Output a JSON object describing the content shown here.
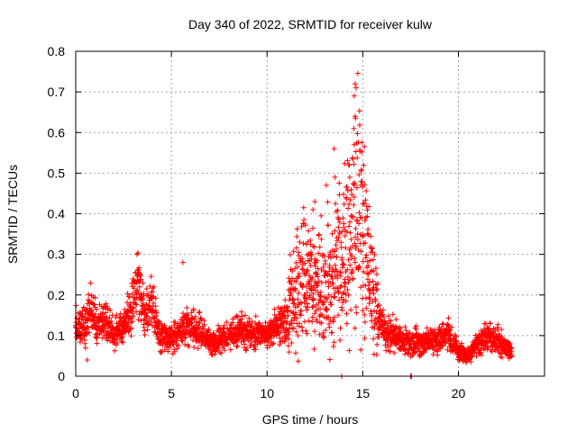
{
  "chart_data": {
    "type": "scatter",
    "title": "Day 340 of 2022, SRMTID for receiver kulw",
    "xlabel": "GPS time / hours",
    "ylabel": "SRMTID / TECUs",
    "xlim": [
      0,
      24.5
    ],
    "ylim": [
      0,
      0.8
    ],
    "xticks": [
      0,
      5,
      10,
      15,
      20
    ],
    "yticks": [
      0,
      0.1,
      0.2,
      0.3,
      0.4,
      0.5,
      0.6,
      0.7,
      0.8
    ],
    "xtick_labels": [
      "0",
      "5",
      "10",
      "15",
      "20"
    ],
    "ytick_labels": [
      "0",
      "0.1",
      "0.2",
      "0.3",
      "0.4",
      "0.5",
      "0.6",
      "0.7",
      "0.8"
    ],
    "grid": true,
    "marker": "+",
    "color": "#ff0000",
    "trend": {
      "x": [
        0,
        0.5,
        0.7,
        1.0,
        1.5,
        2.0,
        2.5,
        3.0,
        3.3,
        3.6,
        4.0,
        4.3,
        5.0,
        5.6,
        6.0,
        6.5,
        7.0,
        8.0,
        9.0,
        10.0,
        10.5,
        11.0,
        11.5,
        12.0,
        12.5,
        13.0,
        13.5,
        14.0,
        14.5,
        14.7,
        15.0,
        15.3,
        15.6,
        16.0,
        17.0,
        18.0,
        19.0,
        19.5,
        20.0,
        20.5,
        21.0,
        21.5,
        22.0,
        22.8
      ],
      "y": [
        0.12,
        0.13,
        0.17,
        0.13,
        0.14,
        0.1,
        0.12,
        0.18,
        0.24,
        0.14,
        0.18,
        0.1,
        0.09,
        0.12,
        0.13,
        0.11,
        0.08,
        0.1,
        0.11,
        0.1,
        0.12,
        0.14,
        0.2,
        0.24,
        0.22,
        0.21,
        0.24,
        0.28,
        0.36,
        0.45,
        0.36,
        0.26,
        0.18,
        0.12,
        0.09,
        0.08,
        0.09,
        0.1,
        0.06,
        0.05,
        0.08,
        0.1,
        0.09,
        0.06
      ]
    },
    "sample_step_hours": 0.0083,
    "x_end": 22.8,
    "notable_points": [
      {
        "x": 14.6,
        "y": 0.72
      },
      {
        "x": 14.65,
        "y": 0.71
      },
      {
        "x": 14.55,
        "y": 0.69
      },
      {
        "x": 14.6,
        "y": 0.64
      },
      {
        "x": 13.5,
        "y": 0.56
      },
      {
        "x": 14.55,
        "y": 0.57
      },
      {
        "x": 14.3,
        "y": 0.52
      },
      {
        "x": 13.55,
        "y": 0.49
      },
      {
        "x": 13.1,
        "y": 0.47
      },
      {
        "x": 14.9,
        "y": 0.47
      },
      {
        "x": 12.5,
        "y": 0.43
      },
      {
        "x": 12.4,
        "y": 0.41
      },
      {
        "x": 3.2,
        "y": 0.3
      },
      {
        "x": 5.6,
        "y": 0.28
      },
      {
        "x": 0.6,
        "y": 0.04
      },
      {
        "x": 13.9,
        "y": 0.0
      },
      {
        "x": 17.5,
        "y": 0.0
      },
      {
        "x": 17.55,
        "y": 0.0
      }
    ]
  }
}
